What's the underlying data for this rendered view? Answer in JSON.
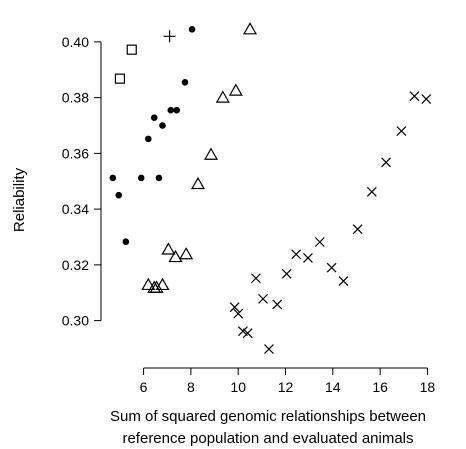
{
  "chart_data": {
    "type": "scatter",
    "xlabel": [
      "Sum of squared genomic relationships between",
      "reference population and evaluated animals"
    ],
    "ylabel": "Reliability",
    "xlim": [
      4.2,
      18.7
    ],
    "ylim": [
      0.283,
      0.41
    ],
    "x_ticks": [
      6,
      8,
      10,
      12,
      14,
      16,
      18
    ],
    "y_ticks": [
      0.3,
      0.32,
      0.34,
      0.36,
      0.38,
      0.4
    ],
    "y_tick_labels": [
      "0.30",
      "0.32",
      "0.34",
      "0.36",
      "0.38",
      "0.40"
    ],
    "grid": false,
    "series": [
      {
        "marker": "dot",
        "points": [
          [
            8.05,
            0.4045
          ],
          [
            7.75,
            0.3855
          ],
          [
            7.4,
            0.3755
          ],
          [
            7.15,
            0.3755
          ],
          [
            6.45,
            0.3728
          ],
          [
            6.8,
            0.37
          ],
          [
            6.2,
            0.3652
          ],
          [
            6.65,
            0.3512
          ],
          [
            5.9,
            0.3512
          ],
          [
            4.7,
            0.3512
          ],
          [
            4.95,
            0.345
          ],
          [
            5.25,
            0.3283
          ]
        ]
      },
      {
        "marker": "square",
        "points": [
          [
            5.5,
            0.3972
          ],
          [
            5.0,
            0.3868
          ]
        ]
      },
      {
        "marker": "plus",
        "points": [
          [
            7.1,
            0.402
          ]
        ]
      },
      {
        "marker": "triangle",
        "points": [
          [
            10.5,
            0.4045
          ],
          [
            9.9,
            0.3825
          ],
          [
            9.35,
            0.38
          ],
          [
            8.85,
            0.3595
          ],
          [
            8.3,
            0.349
          ],
          [
            7.05,
            0.3255
          ],
          [
            7.8,
            0.3238
          ],
          [
            7.35,
            0.3228
          ],
          [
            6.2,
            0.3128
          ],
          [
            6.8,
            0.3128
          ],
          [
            6.45,
            0.3118
          ],
          [
            6.55,
            0.3118
          ]
        ]
      },
      {
        "marker": "x",
        "points": [
          [
            17.45,
            0.3805
          ],
          [
            17.95,
            0.3795
          ],
          [
            16.9,
            0.368
          ],
          [
            16.25,
            0.3568
          ],
          [
            15.65,
            0.3462
          ],
          [
            15.05,
            0.3328
          ],
          [
            13.45,
            0.3282
          ],
          [
            12.45,
            0.3238
          ],
          [
            12.95,
            0.3225
          ],
          [
            13.95,
            0.319
          ],
          [
            14.45,
            0.3142
          ],
          [
            12.05,
            0.3168
          ],
          [
            10.75,
            0.3152
          ],
          [
            11.05,
            0.3078
          ],
          [
            11.65,
            0.3058
          ],
          [
            9.85,
            0.3048
          ],
          [
            10.0,
            0.3025
          ],
          [
            10.2,
            0.2962
          ],
          [
            10.4,
            0.2955
          ],
          [
            11.3,
            0.2898
          ]
        ]
      }
    ]
  }
}
